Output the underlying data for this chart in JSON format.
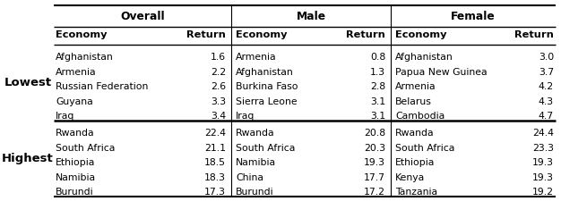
{
  "sections": [
    "Overall",
    "Male",
    "Female"
  ],
  "lowest": {
    "overall": [
      [
        "Afghanistan",
        "1.6"
      ],
      [
        "Armenia",
        "2.2"
      ],
      [
        "Russian Federation",
        "2.6"
      ],
      [
        "Guyana",
        "3.3"
      ],
      [
        "Iraq",
        "3.4"
      ]
    ],
    "male": [
      [
        "Armenia",
        "0.8"
      ],
      [
        "Afghanistan",
        "1.3"
      ],
      [
        "Burkina Faso",
        "2.8"
      ],
      [
        "Sierra Leone",
        "3.1"
      ],
      [
        "Iraq",
        "3.1"
      ]
    ],
    "female": [
      [
        "Afghanistan",
        "3.0"
      ],
      [
        "Papua New Guinea",
        "3.7"
      ],
      [
        "Armenia",
        "4.2"
      ],
      [
        "Belarus",
        "4.3"
      ],
      [
        "Cambodia",
        "4.7"
      ]
    ]
  },
  "highest": {
    "overall": [
      [
        "Rwanda",
        "22.4"
      ],
      [
        "South Africa",
        "21.1"
      ],
      [
        "Ethiopia",
        "18.5"
      ],
      [
        "Namibia",
        "18.3"
      ],
      [
        "Burundi",
        "17.3"
      ]
    ],
    "male": [
      [
        "Rwanda",
        "20.8"
      ],
      [
        "South Africa",
        "20.3"
      ],
      [
        "Namibia",
        "19.3"
      ],
      [
        "China",
        "17.7"
      ],
      [
        "Burundi",
        "17.2"
      ]
    ],
    "female": [
      [
        "Rwanda",
        "24.4"
      ],
      [
        "South Africa",
        "23.3"
      ],
      [
        "Ethiopia",
        "19.3"
      ],
      [
        "Kenya",
        "19.3"
      ],
      [
        "Tanzania",
        "19.2"
      ]
    ]
  },
  "bg_color": "#ffffff",
  "font_size": 7.8,
  "header_font_size": 8.2,
  "section_font_size": 8.8,
  "label_font_size": 9.5
}
